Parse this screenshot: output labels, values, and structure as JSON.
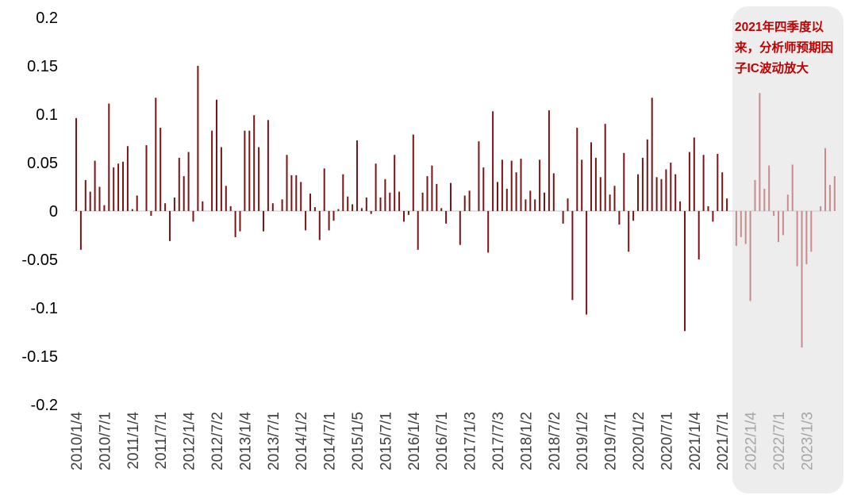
{
  "chart_data": {
    "type": "bar",
    "title": "",
    "xlabel": "",
    "ylabel": "",
    "ylim": [
      -0.2,
      0.2
    ],
    "yticks": [
      "0.2",
      "0.15",
      "0.1",
      "0.05",
      "0",
      "-0.05",
      "-0.1",
      "-0.15",
      "-0.2"
    ],
    "ytick_values": [
      0.2,
      0.15,
      0.1,
      0.05,
      0,
      -0.05,
      -0.1,
      -0.15,
      -0.2
    ],
    "x_tick_labels": [
      "2010/1/4",
      "2010/7/1",
      "2011/1/4",
      "2011/7/1",
      "2012/1/4",
      "2012/7/2",
      "2013/1/4",
      "2013/7/1",
      "2014/1/2",
      "2014/7/1",
      "2015/1/5",
      "2015/7/1",
      "2016/1/4",
      "2016/7/1",
      "2017/1/3",
      "2017/7/3",
      "2018/1/2",
      "2018/7/2",
      "2019/1/2",
      "2019/7/1",
      "2020/1/2",
      "2020/7/1",
      "2021/1/4",
      "2021/7/1",
      "2022/1/4",
      "2022/7/1",
      "2023/1/3"
    ],
    "x_tick_month_index": [
      0,
      6,
      12,
      18,
      24,
      30,
      36,
      42,
      48,
      54,
      60,
      66,
      72,
      78,
      84,
      90,
      96,
      102,
      108,
      114,
      120,
      126,
      132,
      138,
      144,
      150,
      156
    ],
    "highlight_start_index": 141,
    "grid": false,
    "series": [
      {
        "values": [
          0.096,
          -0.04,
          0.032,
          0.02,
          0.052,
          0.025,
          0.006,
          0.111,
          0.045,
          0.049,
          0.051,
          0.067,
          0.002,
          0.016,
          0.0,
          0.068,
          -0.005,
          0.117,
          0.086,
          0.008,
          -0.031,
          0.014,
          0.055,
          0.036,
          0.061,
          -0.011,
          0.15,
          0.01,
          0.0,
          0.083,
          0.115,
          0.066,
          0.026,
          0.005,
          -0.027,
          -0.021,
          0.083,
          0.083,
          0.099,
          0.066,
          -0.021,
          0.094,
          0.008,
          0.0,
          0.012,
          0.058,
          0.037,
          0.037,
          0.03,
          -0.02,
          0.018,
          0.004,
          -0.03,
          0.044,
          -0.02,
          -0.01,
          0.002,
          0.038,
          0.015,
          0.007,
          0.073,
          0.003,
          0.014,
          -0.003,
          0.049,
          0.014,
          0.033,
          0.019,
          0.058,
          0.02,
          -0.011,
          -0.004,
          0.079,
          -0.04,
          0.019,
          0.036,
          0.047,
          0.028,
          0.003,
          -0.013,
          0.029,
          0.0,
          -0.035,
          0.016,
          0.021,
          0.0,
          0.072,
          0.045,
          -0.043,
          0.103,
          0.03,
          0.053,
          0.023,
          0.052,
          0.04,
          0.054,
          0.012,
          0.021,
          0.012,
          0.053,
          0.019,
          0.104,
          0.039,
          0.0,
          -0.013,
          0.013,
          -0.092,
          0.086,
          0.053,
          -0.107,
          0.071,
          0.055,
          0.035,
          0.09,
          0.017,
          0.026,
          -0.014,
          0.06,
          -0.042,
          -0.01,
          0.038,
          0.055,
          0.074,
          0.117,
          0.035,
          0.033,
          0.043,
          0.05,
          0.038,
          0.01,
          -0.124,
          0.061,
          0.076,
          -0.05,
          0.058,
          0.005,
          -0.011,
          0.059,
          0.04,
          0.013,
          0.0,
          -0.036,
          -0.027,
          -0.034,
          -0.093,
          0.032,
          0.122,
          0.023,
          0.047,
          -0.005,
          -0.032,
          -0.025,
          0.017,
          0.048,
          -0.057,
          -0.141,
          -0.055,
          -0.042,
          0.0,
          0.005,
          0.065,
          0.027,
          0.036
        ]
      }
    ],
    "annotation": "2021年四季度以来，分析师预期因子IC波动放大",
    "colors": {
      "bar": "#7b1416",
      "bar_highlight": "#c98a8c",
      "highlight_box": "#ededed",
      "annotation_text": "#c00000",
      "zero_line": "#d9d9d9"
    }
  }
}
